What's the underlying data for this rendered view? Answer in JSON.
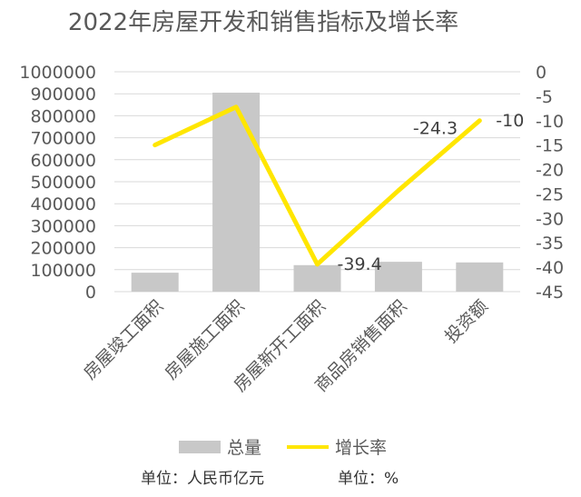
{
  "chart_data": {
    "type": "bar+line",
    "title": "2022年房屋开发和销售指标及增长率",
    "categories": [
      "房屋竣工面积",
      "房屋施工面积",
      "房屋新开工面积",
      "商品房销售面积",
      "投资额"
    ],
    "series": [
      {
        "name": "总量",
        "type": "bar",
        "axis": "left",
        "color": "#c8c8c8",
        "values": [
          86222,
          904999,
          120587,
          135837,
          132895
        ]
      },
      {
        "name": "增长率",
        "type": "line",
        "axis": "right",
        "color": "#ffe600",
        "values": [
          -15,
          -7.2,
          -39.4,
          -24.3,
          -10
        ]
      }
    ],
    "y_left": {
      "min": 0,
      "max": 1000000,
      "step": 100000,
      "ticks": [
        "0",
        "100000",
        "200000",
        "300000",
        "400000",
        "500000",
        "600000",
        "700000",
        "800000",
        "900000",
        "1000000"
      ]
    },
    "y_right": {
      "min": -45,
      "max": 0,
      "step": 5,
      "ticks": [
        "0",
        "-5",
        "-10",
        "-15",
        "-20",
        "-25",
        "-30",
        "-35",
        "-40",
        "-45"
      ]
    },
    "data_labels": [
      {
        "series": "增长率",
        "index": 2,
        "text": "-39.4"
      },
      {
        "series": "增长率",
        "index": 3,
        "text": "-24.3"
      },
      {
        "series": "增长率",
        "index": 4,
        "text": "-10"
      }
    ],
    "grid": true,
    "legend_position": "bottom"
  },
  "legend": {
    "bar_label": "总量",
    "line_label": "增长率"
  },
  "units": {
    "left": "单位：人民币亿元",
    "right": "单位：%"
  }
}
